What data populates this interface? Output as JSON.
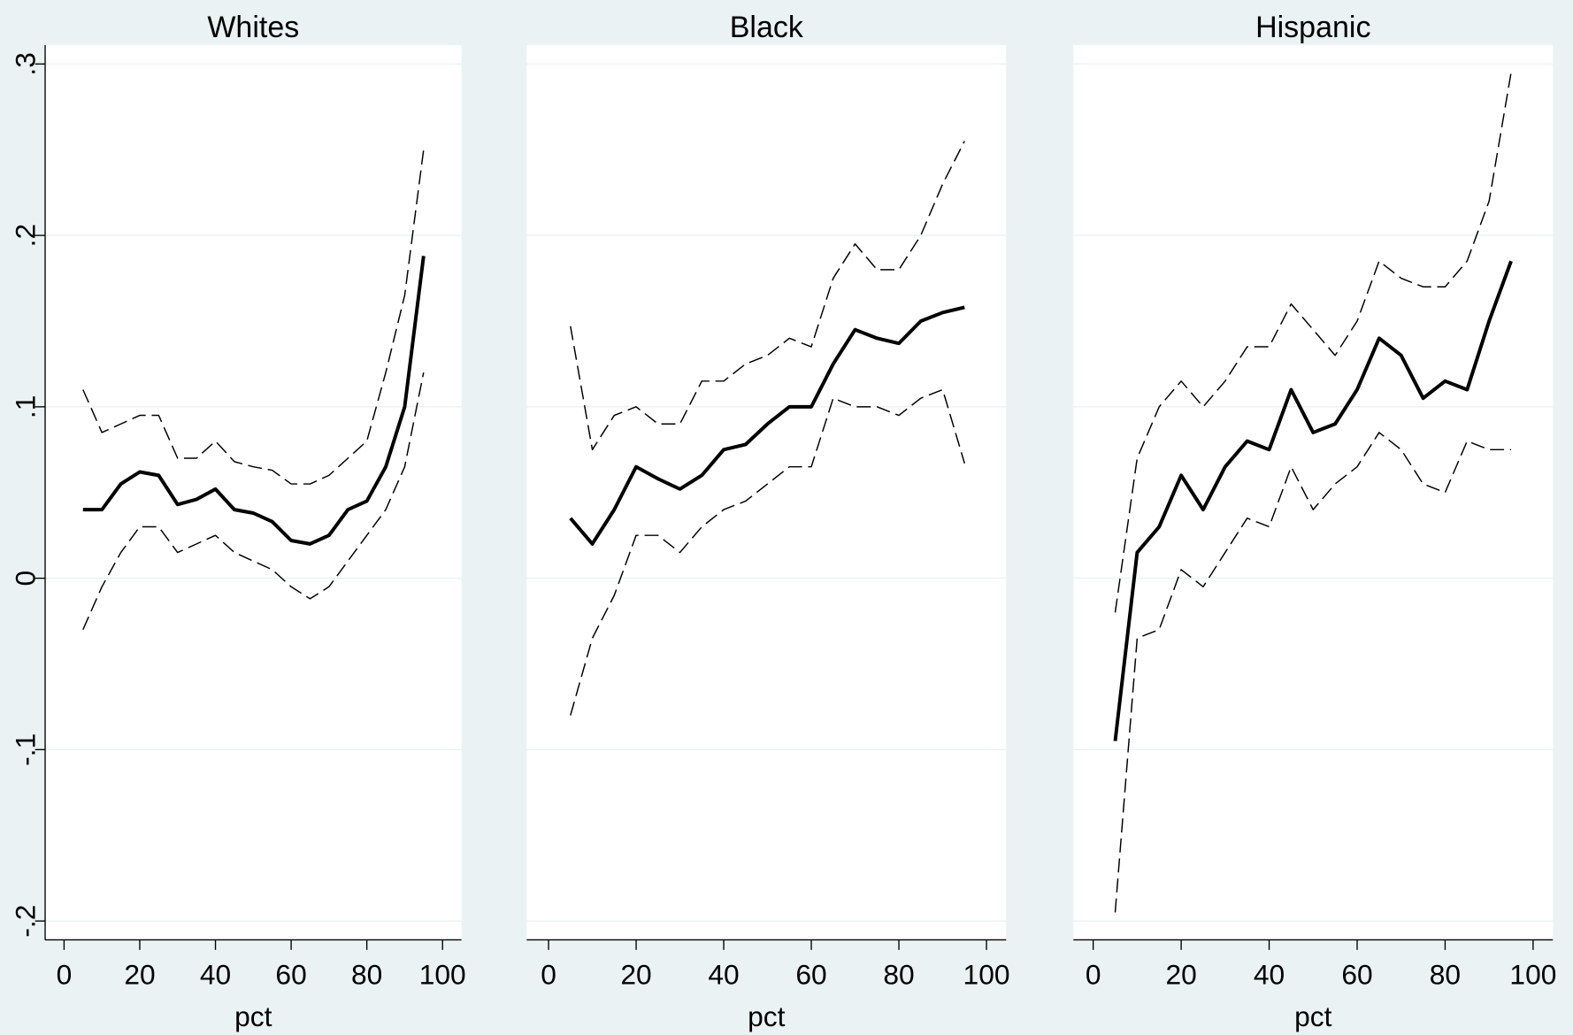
{
  "chart_data": [
    {
      "type": "line",
      "title": "Whites",
      "xlabel": "pct",
      "x": [
        5,
        10,
        15,
        20,
        25,
        30,
        35,
        40,
        45,
        50,
        55,
        60,
        65,
        70,
        75,
        80,
        85,
        90,
        95
      ],
      "xlim": [
        -5,
        105
      ],
      "xticks": [
        0,
        20,
        40,
        60,
        80,
        100
      ],
      "ylim": [
        -0.211,
        0.311
      ],
      "yticks": [
        {
          "value": -0.2,
          "label": "-.2"
        },
        {
          "value": -0.1,
          "label": "-.1"
        },
        0,
        {
          "value": 0.1,
          "label": ".1"
        },
        {
          "value": 0.2,
          "label": ".2"
        },
        {
          "value": 0.3,
          "label": ".3"
        }
      ],
      "grid": true,
      "series": [
        {
          "color": "#000000",
          "style": "solid",
          "values": [
            0.04,
            0.04,
            0.055,
            0.062,
            0.06,
            0.043,
            0.046,
            0.052,
            0.04,
            0.038,
            0.033,
            0.022,
            0.02,
            0.025,
            0.04,
            0.045,
            0.065,
            0.1,
            0.188
          ]
        },
        {
          "color": "#000000",
          "style": "dashed",
          "values": [
            0.11,
            0.085,
            0.09,
            0.095,
            0.095,
            0.07,
            0.07,
            0.08,
            0.068,
            0.065,
            0.063,
            0.055,
            0.055,
            0.06,
            0.07,
            0.08,
            0.12,
            0.165,
            0.25
          ]
        },
        {
          "color": "#000000",
          "style": "dashed",
          "values": [
            -0.03,
            -0.005,
            0.015,
            0.03,
            0.03,
            0.015,
            0.02,
            0.025,
            0.015,
            0.01,
            0.005,
            -0.005,
            -0.012,
            -0.005,
            0.01,
            0.025,
            0.04,
            0.065,
            0.12
          ]
        }
      ]
    },
    {
      "type": "line",
      "title": "Black",
      "xlabel": "pct",
      "x": [
        5,
        10,
        15,
        20,
        25,
        30,
        35,
        40,
        45,
        50,
        55,
        60,
        65,
        70,
        75,
        80,
        85,
        90,
        95
      ],
      "xlim": [
        -5,
        104.5
      ],
      "xticks": [
        0,
        20,
        40,
        60,
        80,
        100
      ],
      "series": [
        {
          "color": "#000000",
          "style": "solid",
          "values": [
            0.035,
            0.02,
            0.04,
            0.065,
            0.058,
            0.052,
            0.06,
            0.075,
            0.078,
            0.09,
            0.1,
            0.1,
            0.125,
            0.145,
            0.14,
            0.137,
            0.15,
            0.155,
            0.158
          ]
        },
        {
          "color": "#000000",
          "style": "dashed",
          "values": [
            0.147,
            0.075,
            0.095,
            0.1,
            0.09,
            0.09,
            0.115,
            0.115,
            0.125,
            0.13,
            0.14,
            0.135,
            0.175,
            0.195,
            0.18,
            0.18,
            0.2,
            0.23,
            0.255
          ]
        },
        {
          "color": "#000000",
          "style": "dashed",
          "values": [
            -0.08,
            -0.035,
            -0.01,
            0.025,
            0.025,
            0.015,
            0.03,
            0.04,
            0.045,
            0.055,
            0.065,
            0.065,
            0.105,
            0.1,
            0.1,
            0.095,
            0.105,
            0.11,
            0.067
          ]
        }
      ]
    },
    {
      "type": "line",
      "title": "Hispanic",
      "xlabel": "pct",
      "x": [
        5,
        10,
        15,
        20,
        25,
        30,
        35,
        40,
        45,
        50,
        55,
        60,
        65,
        70,
        75,
        80,
        85,
        90,
        95
      ],
      "xlim": [
        -4.5,
        104.5
      ],
      "xticks": [
        0,
        20,
        40,
        60,
        80,
        100
      ],
      "series": [
        {
          "color": "#000000",
          "style": "solid",
          "values": [
            -0.095,
            0.015,
            0.03,
            0.06,
            0.04,
            0.065,
            0.08,
            0.075,
            0.11,
            0.085,
            0.09,
            0.11,
            0.14,
            0.13,
            0.105,
            0.115,
            0.11,
            0.15,
            0.185
          ]
        },
        {
          "color": "#000000",
          "style": "dashed",
          "values": [
            -0.02,
            0.07,
            0.1,
            0.115,
            0.1,
            0.115,
            0.135,
            0.135,
            0.16,
            0.145,
            0.13,
            0.15,
            0.185,
            0.175,
            0.17,
            0.17,
            0.185,
            0.22,
            0.295
          ]
        },
        {
          "color": "#000000",
          "style": "dashed",
          "values": [
            -0.195,
            -0.035,
            -0.03,
            0.005,
            -0.005,
            0.015,
            0.035,
            0.03,
            0.065,
            0.04,
            0.055,
            0.065,
            0.085,
            0.075,
            0.055,
            0.05,
            0.08,
            0.075,
            0.075
          ]
        }
      ]
    }
  ]
}
